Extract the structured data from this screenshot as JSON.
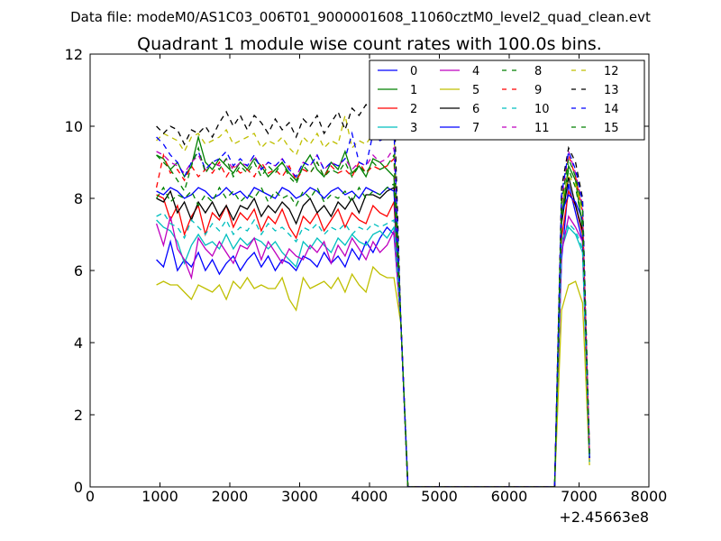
{
  "figure": {
    "suptitle": "Data file: modeM0/AS1C03_006T01_9000001608_11060cztM0_level2_quad_clean.evt"
  },
  "chart_data": {
    "type": "line",
    "title": "Quadrant 1 module wise count rates with 100.0s bins.",
    "xlabel": "",
    "ylabel": "",
    "x_offset_label": "+2.45663e8",
    "xlim": [
      0,
      8000
    ],
    "ylim": [
      0,
      12
    ],
    "xticks": [
      0,
      1000,
      2000,
      3000,
      4000,
      5000,
      6000,
      7000,
      8000
    ],
    "yticks": [
      0,
      2,
      4,
      6,
      8,
      10,
      12
    ],
    "xtick_labels": [
      "0",
      "1000",
      "2000",
      "3000",
      "4000",
      "5000",
      "6000",
      "7000",
      "8000"
    ],
    "ytick_labels": [
      "0",
      "2",
      "4",
      "6",
      "8",
      "10",
      "12"
    ],
    "grid": false,
    "legend_placement": "top-right",
    "legend_columns": 4,
    "x": [
      950,
      1050,
      1150,
      1250,
      1350,
      1450,
      1550,
      1650,
      1750,
      1850,
      1950,
      2050,
      2150,
      2250,
      2350,
      2450,
      2550,
      2650,
      2750,
      2850,
      2950,
      3050,
      3150,
      3250,
      3350,
      3450,
      3550,
      3650,
      3750,
      3850,
      3950,
      4050,
      4150,
      4250,
      4350,
      4450,
      4550,
      4650,
      4750,
      4850,
      4950,
      5050,
      5150,
      5250,
      5350,
      5450,
      5550,
      5650,
      5750,
      5850,
      5950,
      6050,
      6150,
      6250,
      6350,
      6450,
      6550,
      6650,
      6750,
      6850,
      6950,
      7050,
      7150
    ],
    "series": [
      {
        "name": "0",
        "color": "#0000ff",
        "dash": "solid",
        "values": [
          6.3,
          6.1,
          6.8,
          6.0,
          6.3,
          6.1,
          6.5,
          6.0,
          6.3,
          5.9,
          6.2,
          6.4,
          6.0,
          6.3,
          6.5,
          6.1,
          6.4,
          6.0,
          6.3,
          6.2,
          6.0,
          6.4,
          6.3,
          6.1,
          6.5,
          6.2,
          6.4,
          6.1,
          6.6,
          6.3,
          6.8,
          6.5,
          6.9,
          7.2,
          7.0,
          4.5,
          0,
          0,
          0,
          0,
          0,
          0,
          0,
          0,
          0,
          0,
          0,
          0,
          0,
          0,
          0,
          0,
          0,
          0,
          0,
          0,
          0,
          0,
          6.3,
          8.4,
          7.6,
          6.8,
          0.8
        ]
      },
      {
        "name": "1",
        "color": "#008000",
        "dash": "solid",
        "values": [
          9.2,
          9.1,
          8.8,
          9.0,
          8.6,
          8.9,
          9.7,
          9.0,
          8.8,
          9.1,
          8.9,
          8.7,
          9.0,
          8.8,
          9.1,
          8.9,
          8.6,
          8.8,
          9.0,
          8.7,
          8.5,
          8.9,
          9.2,
          8.8,
          8.6,
          9.0,
          8.8,
          9.3,
          8.7,
          8.9,
          8.6,
          9.1,
          9.0,
          8.8,
          8.6,
          4.5,
          0,
          0,
          0,
          0,
          0,
          0,
          0,
          0,
          0,
          0,
          0,
          0,
          0,
          0,
          0,
          0,
          0,
          0,
          0,
          0,
          0,
          0,
          7.5,
          8.9,
          8.5,
          7.2,
          0.9
        ]
      },
      {
        "name": "2",
        "color": "#ff0000",
        "dash": "solid",
        "values": [
          8.1,
          8.0,
          7.4,
          7.8,
          7.0,
          7.5,
          7.8,
          7.0,
          7.6,
          7.4,
          7.8,
          7.2,
          7.6,
          7.4,
          7.7,
          7.1,
          7.5,
          7.3,
          7.7,
          7.2,
          6.9,
          7.5,
          7.3,
          7.6,
          7.1,
          7.4,
          7.7,
          7.2,
          7.6,
          7.4,
          7.3,
          7.8,
          7.6,
          7.5,
          7.9,
          4.5,
          0,
          0,
          0,
          0,
          0,
          0,
          0,
          0,
          0,
          0,
          0,
          0,
          0,
          0,
          0,
          0,
          0,
          0,
          0,
          0,
          0,
          0,
          6.9,
          8.2,
          7.8,
          7.0,
          0.8
        ]
      },
      {
        "name": "3",
        "color": "#00bfbf",
        "dash": "solid",
        "values": [
          7.4,
          7.2,
          7.1,
          6.8,
          6.2,
          6.7,
          7.0,
          6.7,
          6.8,
          6.6,
          7.0,
          6.6,
          6.9,
          6.7,
          6.9,
          6.8,
          6.6,
          6.8,
          6.5,
          6.3,
          6.1,
          6.8,
          6.6,
          6.9,
          6.7,
          6.5,
          6.9,
          6.7,
          7.0,
          6.8,
          6.7,
          7.0,
          7.1,
          6.9,
          7.2,
          4.5,
          0,
          0,
          0,
          0,
          0,
          0,
          0,
          0,
          0,
          0,
          0,
          0,
          0,
          0,
          0,
          0,
          0,
          0,
          0,
          0,
          0,
          0,
          6.6,
          7.2,
          7.0,
          6.5,
          0.7
        ]
      },
      {
        "name": "4",
        "color": "#bf00bf",
        "dash": "solid",
        "values": [
          7.3,
          6.7,
          7.5,
          6.6,
          6.3,
          5.8,
          6.9,
          6.6,
          6.4,
          6.8,
          6.5,
          6.2,
          6.7,
          6.6,
          6.9,
          6.3,
          6.8,
          6.5,
          6.2,
          6.6,
          6.4,
          6.3,
          6.7,
          6.5,
          6.8,
          6.2,
          6.7,
          6.4,
          6.9,
          6.6,
          6.3,
          6.8,
          6.5,
          6.7,
          7.1,
          4.5,
          0,
          0,
          0,
          0,
          0,
          0,
          0,
          0,
          0,
          0,
          0,
          0,
          0,
          0,
          0,
          0,
          0,
          0,
          0,
          0,
          0,
          0,
          6.5,
          7.5,
          7.2,
          6.8,
          0.7
        ]
      },
      {
        "name": "5",
        "color": "#bfbf00",
        "dash": "solid",
        "values": [
          5.6,
          5.7,
          5.6,
          5.6,
          5.4,
          5.2,
          5.6,
          5.5,
          5.4,
          5.6,
          5.2,
          5.7,
          5.5,
          5.8,
          5.5,
          5.6,
          5.5,
          5.5,
          5.8,
          5.2,
          4.9,
          5.8,
          5.5,
          5.6,
          5.7,
          5.5,
          5.8,
          5.4,
          5.9,
          5.6,
          5.4,
          6.1,
          5.9,
          5.8,
          5.8,
          4.5,
          0,
          0,
          0,
          0,
          0,
          0,
          0,
          0,
          0,
          0,
          0,
          0,
          0,
          0,
          0,
          0,
          0,
          0,
          0,
          0,
          0,
          0,
          4.9,
          5.6,
          5.7,
          5.1,
          0.6
        ]
      },
      {
        "name": "6",
        "color": "#000000",
        "dash": "solid",
        "values": [
          8.0,
          7.9,
          8.2,
          7.6,
          7.9,
          7.4,
          7.9,
          7.6,
          7.9,
          7.5,
          7.8,
          7.4,
          7.8,
          7.7,
          8.0,
          7.5,
          7.8,
          7.6,
          7.9,
          7.7,
          7.3,
          7.8,
          8.0,
          7.6,
          7.8,
          7.5,
          7.9,
          7.7,
          8.0,
          7.6,
          8.1,
          8.1,
          8.0,
          8.2,
          8.3,
          4.5,
          0,
          0,
          0,
          0,
          0,
          0,
          0,
          0,
          0,
          0,
          0,
          0,
          0,
          0,
          0,
          0,
          0,
          0,
          0,
          0,
          0,
          0,
          7.3,
          8.6,
          7.8,
          7.1,
          0.8
        ]
      },
      {
        "name": "7",
        "color": "#0000ff",
        "dash": "solid",
        "values": [
          8.2,
          8.1,
          8.3,
          8.2,
          8.0,
          8.1,
          8.3,
          8.2,
          8.0,
          8.1,
          8.3,
          8.1,
          8.2,
          8.0,
          8.3,
          8.2,
          8.1,
          8.0,
          8.3,
          8.2,
          8.0,
          8.1,
          8.3,
          8.2,
          8.0,
          8.2,
          8.3,
          8.1,
          8.2,
          8.0,
          8.3,
          8.2,
          8.1,
          8.3,
          8.2,
          4.5,
          0,
          0,
          0,
          0,
          0,
          0,
          0,
          0,
          0,
          0,
          0,
          0,
          0,
          0,
          0,
          0,
          0,
          0,
          0,
          0,
          0,
          0,
          7.6,
          8.1,
          7.9,
          7.4,
          0.8
        ]
      },
      {
        "name": "8",
        "color": "#008000",
        "dash": "dashed",
        "values": [
          8.0,
          8.3,
          7.9,
          8.1,
          8.0,
          8.2,
          7.8,
          8.1,
          7.9,
          8.3,
          8.0,
          8.2,
          7.9,
          8.1,
          8.0,
          8.3,
          7.9,
          8.2,
          8.0,
          8.1,
          7.8,
          8.2,
          8.0,
          8.3,
          7.9,
          8.1,
          8.0,
          8.2,
          7.9,
          8.3,
          8.0,
          8.2,
          8.1,
          8.3,
          8.4,
          4.5,
          0,
          0,
          0,
          0,
          0,
          0,
          0,
          0,
          0,
          0,
          0,
          0,
          0,
          0,
          0,
          0,
          0,
          0,
          0,
          0,
          0,
          0,
          7.4,
          8.8,
          8.3,
          7.3,
          0.9
        ]
      },
      {
        "name": "9",
        "color": "#ff0000",
        "dash": "dashed",
        "values": [
          8.3,
          9.2,
          8.7,
          8.8,
          8.5,
          8.9,
          8.6,
          8.8,
          8.7,
          9.0,
          8.6,
          8.9,
          8.7,
          8.8,
          8.6,
          9.0,
          8.7,
          8.8,
          8.6,
          8.9,
          8.5,
          8.8,
          8.7,
          9.0,
          8.6,
          8.9,
          8.7,
          8.8,
          8.6,
          9.0,
          8.7,
          8.9,
          8.8,
          8.9,
          9.1,
          4.5,
          0,
          0,
          0,
          0,
          0,
          0,
          0,
          0,
          0,
          0,
          0,
          0,
          0,
          0,
          0,
          0,
          0,
          0,
          0,
          0,
          0,
          0,
          7.8,
          9.2,
          8.6,
          7.6,
          0.9
        ]
      },
      {
        "name": "10",
        "color": "#00bfbf",
        "dash": "dashed",
        "values": [
          7.5,
          7.6,
          7.3,
          7.2,
          6.9,
          7.4,
          7.2,
          7.0,
          7.3,
          7.1,
          7.4,
          7.0,
          7.2,
          7.1,
          7.4,
          7.0,
          7.3,
          7.1,
          7.2,
          7.0,
          6.8,
          7.2,
          7.1,
          7.3,
          7.0,
          7.2,
          7.1,
          7.3,
          7.0,
          7.2,
          7.1,
          7.3,
          7.2,
          7.3,
          7.4,
          4.5,
          0,
          0,
          0,
          0,
          0,
          0,
          0,
          0,
          0,
          0,
          0,
          0,
          0,
          0,
          0,
          0,
          0,
          0,
          0,
          0,
          0,
          0,
          6.8,
          7.3,
          7.1,
          6.6,
          0.7
        ]
      },
      {
        "name": "11",
        "color": "#bf00bf",
        "dash": "dashed",
        "values": [
          9.3,
          9.2,
          9.0,
          8.9,
          8.7,
          9.0,
          9.2,
          8.8,
          9.0,
          8.9,
          9.1,
          8.8,
          9.0,
          8.9,
          9.2,
          8.8,
          9.0,
          8.9,
          9.1,
          8.8,
          8.6,
          9.0,
          8.9,
          9.2,
          8.8,
          9.0,
          8.9,
          9.1,
          8.8,
          9.0,
          8.9,
          9.2,
          9.0,
          9.1,
          9.4,
          4.5,
          0,
          0,
          0,
          0,
          0,
          0,
          0,
          0,
          0,
          0,
          0,
          0,
          0,
          0,
          0,
          0,
          0,
          0,
          0,
          0,
          0,
          0,
          8.0,
          9.3,
          8.7,
          7.8,
          0.9
        ]
      },
      {
        "name": "12",
        "color": "#bfbf00",
        "dash": "dashed",
        "values": [
          9.6,
          9.8,
          9.7,
          9.6,
          9.3,
          9.7,
          9.8,
          9.5,
          9.6,
          9.7,
          9.9,
          9.5,
          9.6,
          9.7,
          9.8,
          9.4,
          9.6,
          9.5,
          9.7,
          9.4,
          9.2,
          9.7,
          9.5,
          9.8,
          9.4,
          9.6,
          9.5,
          10.3,
          9.4,
          9.6,
          9.5,
          9.8,
          9.6,
          9.7,
          9.9,
          4.5,
          0,
          0,
          0,
          0,
          0,
          0,
          0,
          0,
          0,
          0,
          0,
          0,
          0,
          0,
          0,
          0,
          0,
          0,
          0,
          0,
          0,
          0,
          7.9,
          8.6,
          8.4,
          7.6,
          0.9
        ]
      },
      {
        "name": "13",
        "color": "#000000",
        "dash": "dashed",
        "values": [
          10.0,
          9.8,
          10.0,
          9.9,
          9.5,
          9.9,
          9.8,
          10.0,
          9.7,
          10.1,
          10.4,
          10.0,
          10.3,
          9.9,
          10.3,
          10.1,
          9.8,
          10.2,
          9.9,
          10.1,
          9.7,
          10.2,
          10.0,
          10.3,
          9.8,
          10.1,
          10.4,
          9.9,
          10.5,
          10.3,
          10.6,
          10.4,
          10.5,
          10.6,
          10.8,
          4.5,
          0,
          0,
          0,
          0,
          0,
          0,
          0,
          0,
          0,
          0,
          0,
          0,
          0,
          0,
          0,
          0,
          0,
          0,
          0,
          0,
          0,
          0,
          8.3,
          9.4,
          9.0,
          8.0,
          1.0
        ]
      },
      {
        "name": "14",
        "color": "#0000ff",
        "dash": "dashed",
        "values": [
          9.7,
          9.5,
          9.2,
          9.0,
          8.6,
          9.0,
          9.3,
          8.8,
          9.0,
          9.1,
          9.3,
          8.9,
          9.1,
          8.9,
          9.2,
          8.8,
          9.0,
          8.9,
          9.1,
          8.8,
          8.6,
          9.0,
          8.9,
          9.2,
          8.8,
          9.0,
          8.9,
          9.1,
          9.8,
          9.0,
          8.9,
          9.8,
          9.6,
          9.7,
          9.9,
          4.5,
          0,
          0,
          0,
          0,
          0,
          0,
          0,
          0,
          0,
          0,
          0,
          0,
          0,
          0,
          0,
          0,
          0,
          0,
          0,
          0,
          0,
          0,
          8.1,
          9.3,
          8.8,
          7.9,
          0.9
        ]
      },
      {
        "name": "15",
        "color": "#008000",
        "dash": "dashed",
        "values": [
          9.2,
          9.0,
          8.8,
          8.5,
          8.2,
          8.9,
          9.4,
          8.7,
          9.0,
          8.8,
          9.1,
          8.6,
          8.9,
          8.7,
          9.0,
          8.6,
          8.9,
          8.7,
          9.0,
          8.6,
          8.4,
          8.9,
          8.7,
          9.0,
          8.6,
          8.8,
          8.7,
          9.0,
          8.6,
          8.9,
          8.7,
          9.0,
          8.8,
          8.9,
          9.2,
          4.5,
          0,
          0,
          0,
          0,
          0,
          0,
          0,
          0,
          0,
          0,
          0,
          0,
          0,
          0,
          0,
          0,
          0,
          0,
          0,
          0,
          0,
          0,
          7.9,
          9.1,
          8.6,
          7.7,
          0.9
        ]
      }
    ]
  }
}
